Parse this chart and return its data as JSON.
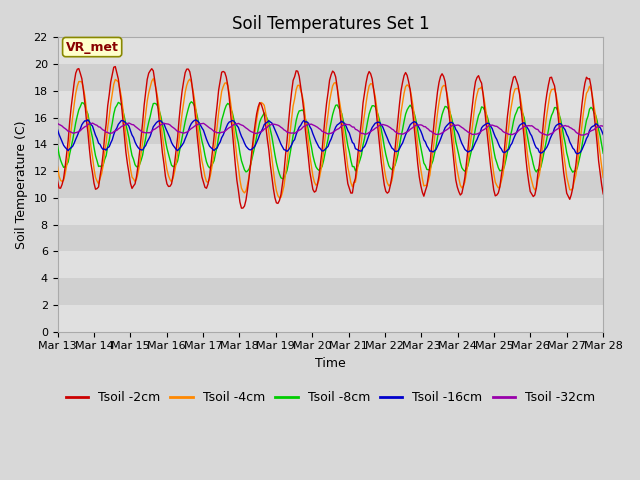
{
  "title": "Soil Temperatures Set 1",
  "xlabel": "Time",
  "ylabel": "Soil Temperature (C)",
  "ylim": [
    0,
    22
  ],
  "yticks": [
    0,
    2,
    4,
    6,
    8,
    10,
    12,
    14,
    16,
    18,
    20,
    22
  ],
  "x_tick_labels": [
    "Mar 13",
    "Mar 14",
    "Mar 15",
    "Mar 16",
    "Mar 17",
    "Mar 18",
    "Mar 19",
    "Mar 20",
    "Mar 21",
    "Mar 22",
    "Mar 23",
    "Mar 24",
    "Mar 25",
    "Mar 26",
    "Mar 27",
    "Mar 28"
  ],
  "series_colors": [
    "#cc0000",
    "#ff8800",
    "#00cc00",
    "#0000cc",
    "#9900aa"
  ],
  "series_labels": [
    "Tsoil -2cm",
    "Tsoil -4cm",
    "Tsoil -8cm",
    "Tsoil -16cm",
    "Tsoil -32cm"
  ],
  "background_color": "#d8d8d8",
  "plot_bg_color": "#e8e8e8",
  "band_colors": [
    "#e0e0e0",
    "#d0d0d0"
  ],
  "annotation_text": "VR_met",
  "annotation_box_color": "#ffffcc",
  "annotation_box_edge": "#888800",
  "title_fontsize": 12,
  "axis_label_fontsize": 9,
  "tick_fontsize": 8,
  "legend_fontsize": 9
}
